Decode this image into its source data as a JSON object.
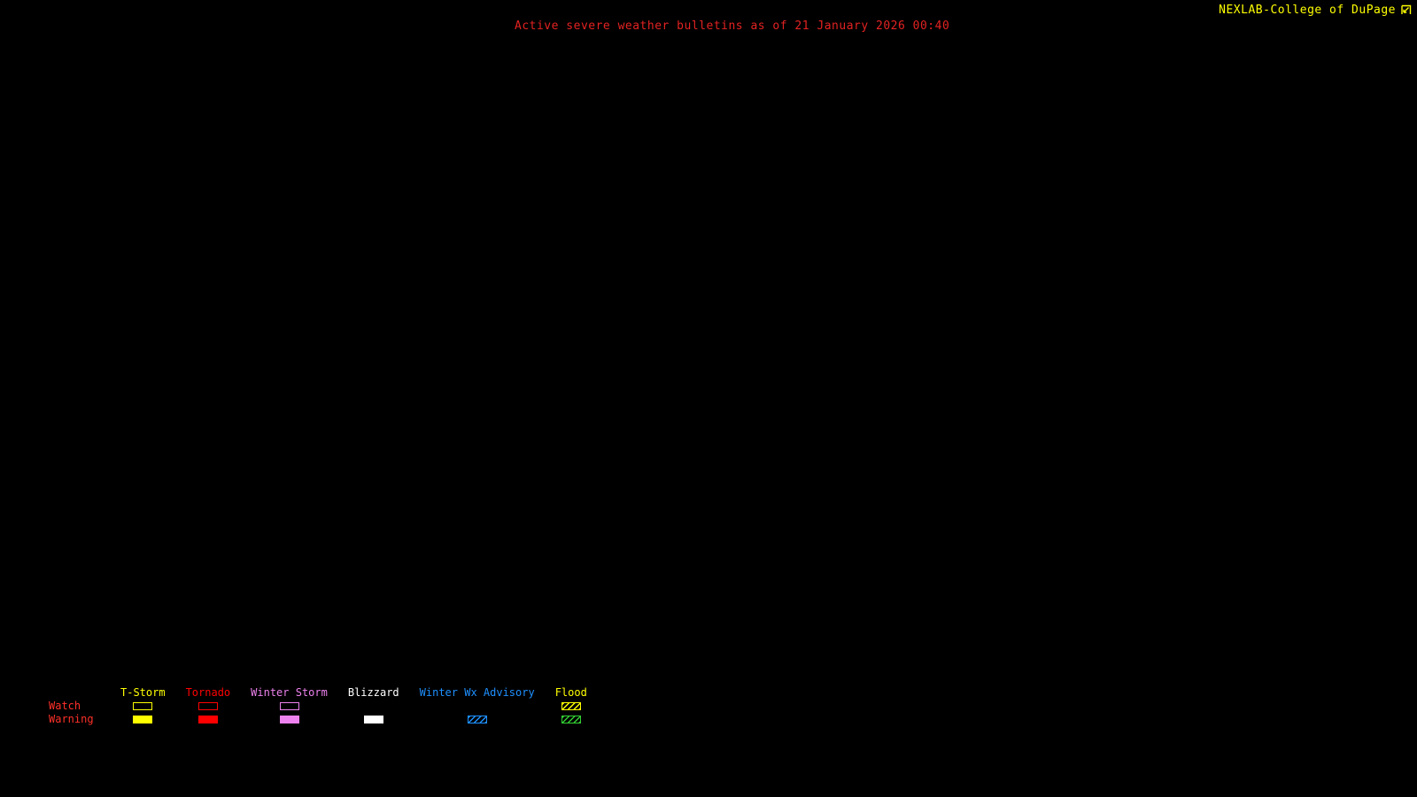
{
  "header": {
    "brand": "NEXLAB-College of DuPage",
    "brand_icon": "arrow-box-icon",
    "brand_color": "#ffff00",
    "title": "Active severe weather bulletins as of 21 January 2026 00:40",
    "title_color": "#e32222"
  },
  "map": {
    "background_color": "#000000"
  },
  "legend": {
    "row_labels": [
      "Watch",
      "Warning"
    ],
    "row_label_color": "#ff3029",
    "columns": [
      {
        "label": "T-Storm",
        "color": "#ffff00",
        "watch": "outline",
        "warning": "filled"
      },
      {
        "label": "Tornado",
        "color": "#ff0000",
        "watch": "outline",
        "warning": "filled"
      },
      {
        "label": "Winter Storm",
        "color": "#ee82ee",
        "watch": "outline",
        "warning": "filled"
      },
      {
        "label": "Blizzard",
        "color": "#ffffff",
        "watch": "none",
        "warning": "filled"
      },
      {
        "label": "Winter Wx Advisory",
        "color": "#1e90ff",
        "watch": "none",
        "warning": "hatch"
      },
      {
        "label": "Flood",
        "color": "#ffff00",
        "watch": "hatch",
        "warning": "hatch",
        "warning_color": "#32cd32"
      }
    ]
  }
}
